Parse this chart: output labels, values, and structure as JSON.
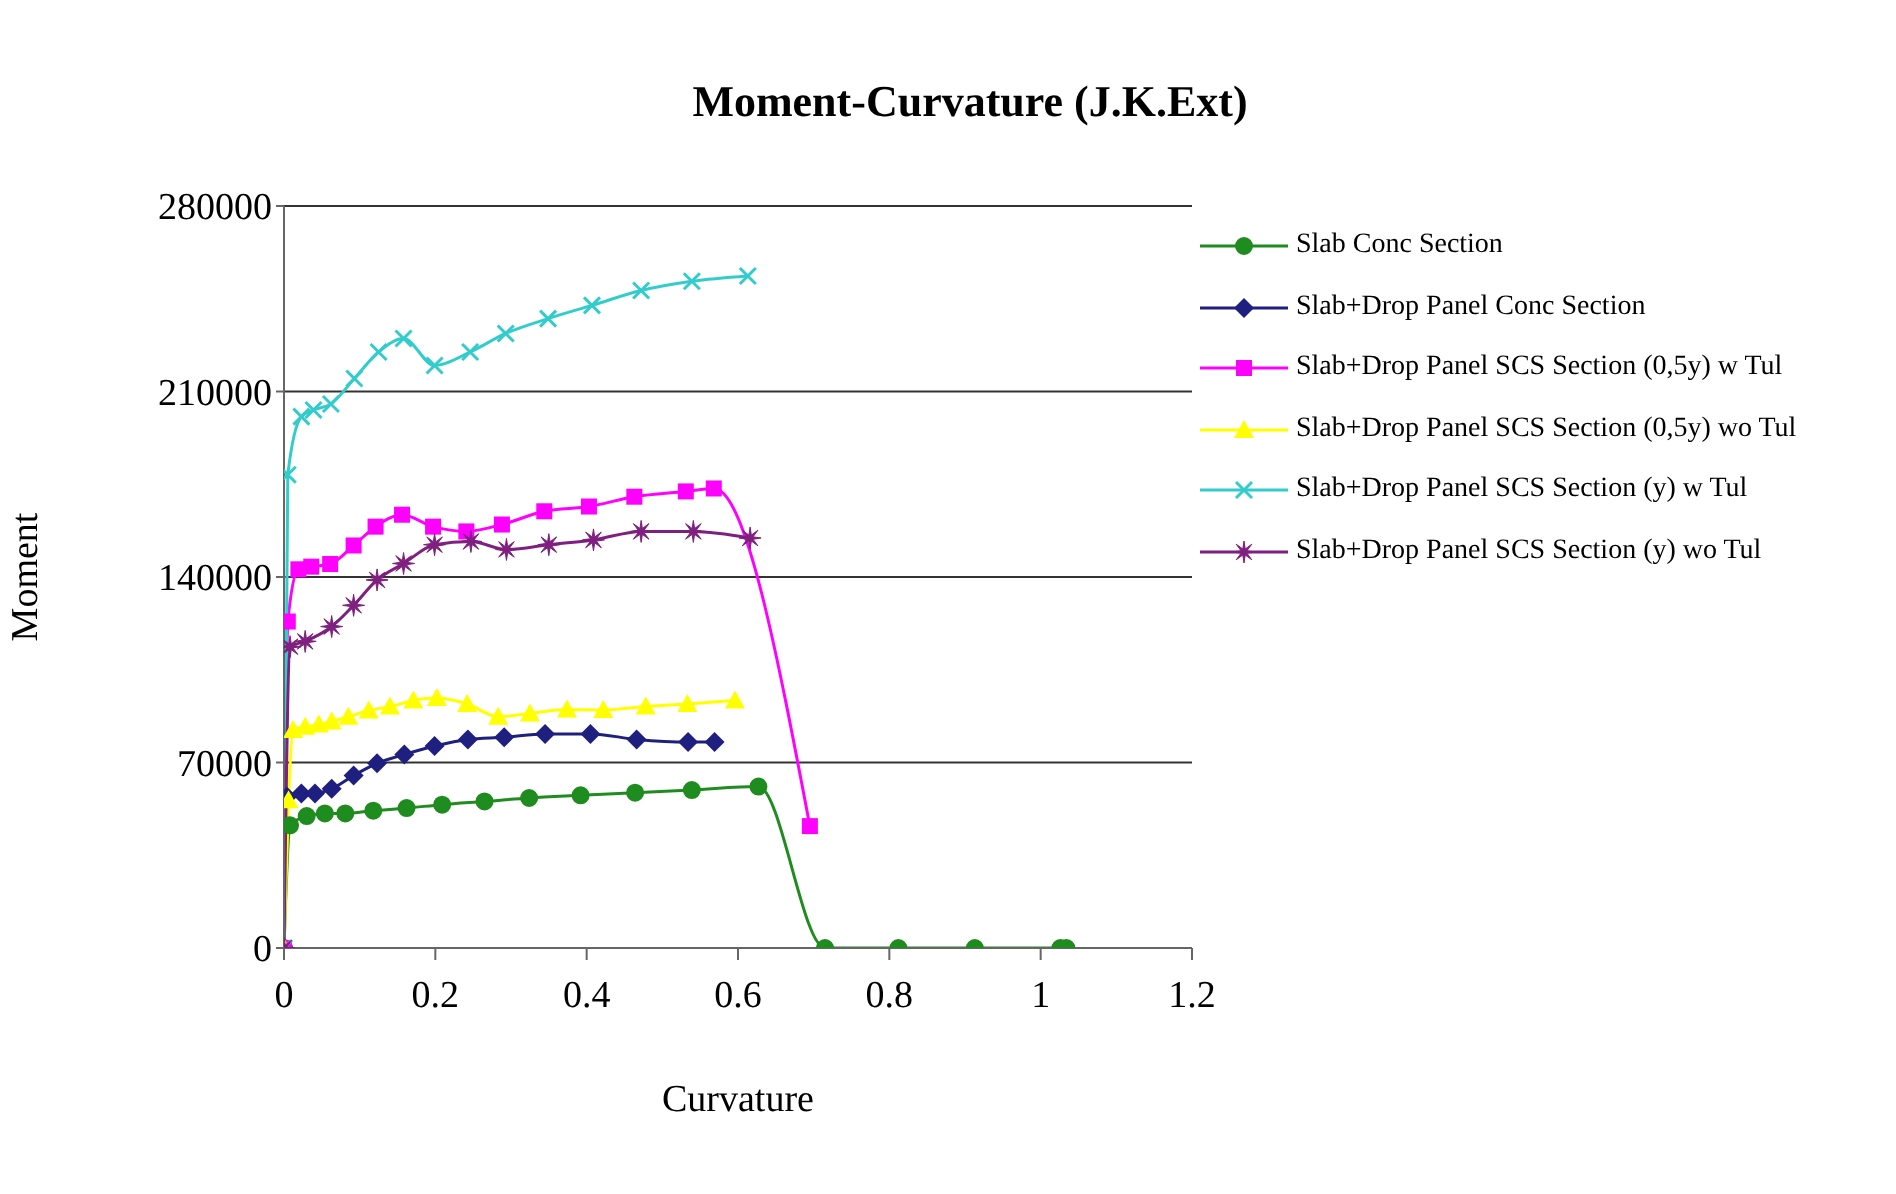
{
  "chart_data": {
    "type": "line",
    "title": "Moment-Curvature (J.K.Ext)",
    "xlabel": "Curvature",
    "ylabel": "Moment",
    "xlim": [
      0,
      1.2
    ],
    "xticks": [
      0,
      0.2,
      0.4,
      0.6,
      0.8,
      1,
      1.2
    ],
    "ylim": [
      0,
      280000
    ],
    "yticks": [
      0,
      70000,
      140000,
      210000,
      280000
    ],
    "grid": "y",
    "legend": "right",
    "series": [
      {
        "name": "Slab Conc Section",
        "color": "#1e8c1e",
        "marker": "circle",
        "x": [
          0,
          0.008,
          0.03,
          0.054,
          0.081,
          0.118,
          0.162,
          0.209,
          0.265,
          0.324,
          0.392,
          0.464,
          0.539,
          0.627,
          0.715,
          0.812,
          0.913,
          1.026,
          1.034
        ],
        "values": [
          0,
          46300,
          49800,
          50800,
          50800,
          51800,
          52800,
          54100,
          55300,
          56600,
          57600,
          58600,
          59600,
          60900,
          0,
          0,
          0,
          0,
          0
        ]
      },
      {
        "name": "Slab+Drop Panel Conc Section",
        "color": "#1f1f80",
        "marker": "diamond",
        "x": [
          0,
          0.004,
          0.023,
          0.041,
          0.063,
          0.092,
          0.123,
          0.159,
          0.199,
          0.243,
          0.291,
          0.345,
          0.405,
          0.466,
          0.534,
          0.569
        ],
        "values": [
          0,
          57100,
          58300,
          58300,
          60100,
          65100,
          69700,
          73000,
          76200,
          78700,
          79500,
          80800,
          80800,
          78700,
          77700,
          77700
        ]
      },
      {
        "name": "Slab+Drop Panel SCS Section (0,5y) w Tul",
        "color": "#ff00ff",
        "marker": "square",
        "x": [
          0,
          0.005,
          0.019,
          0.036,
          0.061,
          0.092,
          0.121,
          0.156,
          0.197,
          0.241,
          0.288,
          0.344,
          0.403,
          0.463,
          0.531,
          0.568,
          0.695
        ],
        "values": [
          0,
          123200,
          142900,
          143900,
          144900,
          151900,
          159000,
          163500,
          159000,
          157200,
          159800,
          164800,
          166600,
          170300,
          172300,
          173400,
          46000
        ]
      },
      {
        "name": "Slab+Drop Panel SCS Section (0,5y) wo Tul",
        "color": "#ffff00",
        "marker": "triangle",
        "x": [
          0,
          0.006,
          0.012,
          0.028,
          0.046,
          0.063,
          0.085,
          0.112,
          0.14,
          0.171,
          0.202,
          0.242,
          0.283,
          0.325,
          0.374,
          0.422,
          0.478,
          0.533,
          0.596
        ],
        "values": [
          0,
          55800,
          82300,
          83500,
          84300,
          85500,
          87300,
          89600,
          91100,
          93400,
          94300,
          92100,
          87300,
          88500,
          90000,
          89800,
          91100,
          92100,
          93400
        ]
      },
      {
        "name": "Slab+Drop Panel SCS Section (y) w Tul",
        "color": "#33cccc",
        "marker": "cross",
        "x": [
          0,
          0.005,
          0.023,
          0.039,
          0.062,
          0.093,
          0.125,
          0.158,
          0.199,
          0.246,
          0.293,
          0.349,
          0.407,
          0.472,
          0.539,
          0.613
        ],
        "values": [
          0,
          178600,
          200500,
          203000,
          205300,
          214900,
          224900,
          230000,
          219800,
          224900,
          231900,
          237500,
          242500,
          248100,
          251600,
          253600
        ]
      },
      {
        "name": "Slab+Drop Panel SCS Section (y) wo Tul",
        "color": "#7f1f7f",
        "marker": "star",
        "x": [
          0,
          0.008,
          0.028,
          0.063,
          0.092,
          0.123,
          0.158,
          0.199,
          0.247,
          0.294,
          0.35,
          0.409,
          0.472,
          0.541,
          0.616
        ],
        "values": [
          0,
          113700,
          115700,
          121300,
          129300,
          138900,
          145100,
          152200,
          153400,
          150400,
          152200,
          154000,
          157200,
          157200,
          154700
        ]
      }
    ]
  }
}
